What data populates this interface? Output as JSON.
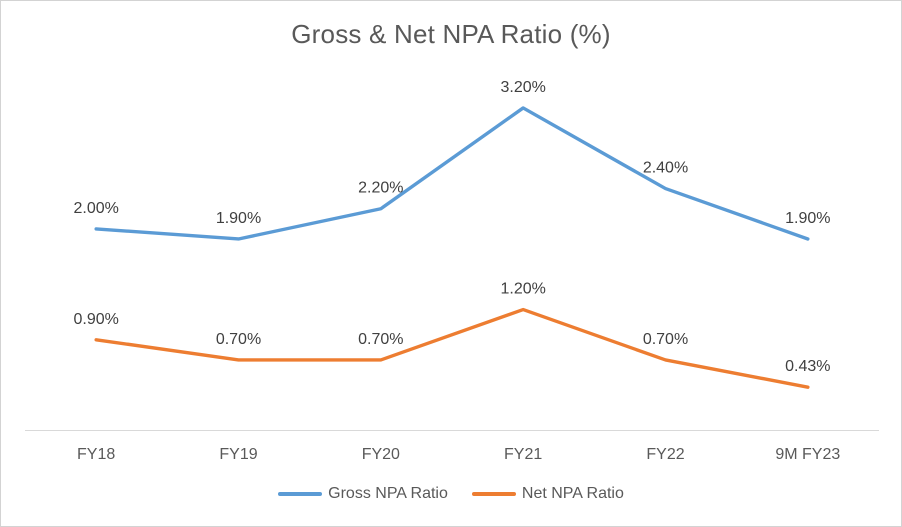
{
  "chart_data": {
    "type": "line",
    "title": "Gross & Net NPA Ratio (%)",
    "categories": [
      "FY18",
      "FY19",
      "FY20",
      "FY21",
      "FY22",
      "9M FY23"
    ],
    "series": [
      {
        "name": "Gross NPA Ratio",
        "color": "#5B9BD5",
        "values": [
          2.0,
          1.9,
          2.2,
          3.2,
          2.4,
          1.9
        ],
        "labels": [
          "2.00%",
          "1.90%",
          "2.20%",
          "3.20%",
          "2.40%",
          "1.90%"
        ]
      },
      {
        "name": "Net NPA Ratio",
        "color": "#ED7D31",
        "values": [
          0.9,
          0.7,
          0.7,
          1.2,
          0.7,
          0.43
        ],
        "labels": [
          "0.90%",
          "0.70%",
          "0.70%",
          "1.20%",
          "0.70%",
          "0.43%"
        ]
      }
    ],
    "ylim": [
      0,
      3.5
    ],
    "grid": false,
    "y_axis_visible": false,
    "legend_position": "bottom",
    "axis_color": "#D9D9D9",
    "text_color": "#595959",
    "label_color": "#404040"
  }
}
